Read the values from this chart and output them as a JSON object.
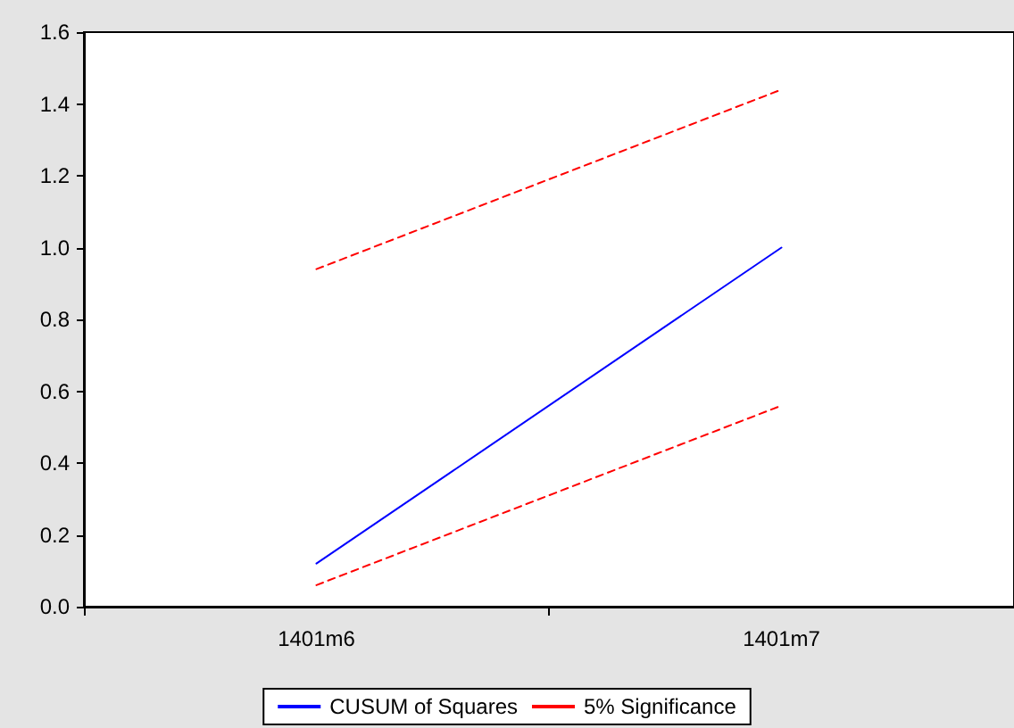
{
  "chart_data": {
    "type": "line",
    "categories": [
      "1401m6",
      "1401m7"
    ],
    "series": [
      {
        "name": "CUSUM of Squares",
        "color": "#0000ff",
        "values": [
          0.12,
          1.0
        ],
        "line_style": "solid"
      },
      {
        "name": "5% Significance",
        "color": "#ff0000",
        "values": [
          0.94,
          1.44
        ],
        "line_style": "dashed"
      },
      {
        "color": "#ff0000",
        "values": [
          0.06,
          0.56
        ],
        "line_style": "dashed"
      }
    ],
    "ylim": [
      0,
      1.6
    ],
    "yticks": [
      {
        "value": 0,
        "label": "0.0"
      },
      0.2,
      0.4,
      0.6,
      0.8,
      {
        "value": 1,
        "label": "1.0"
      },
      1.2,
      1.4,
      1.6
    ],
    "grid": false,
    "legend": "bottom",
    "marker": "none"
  }
}
